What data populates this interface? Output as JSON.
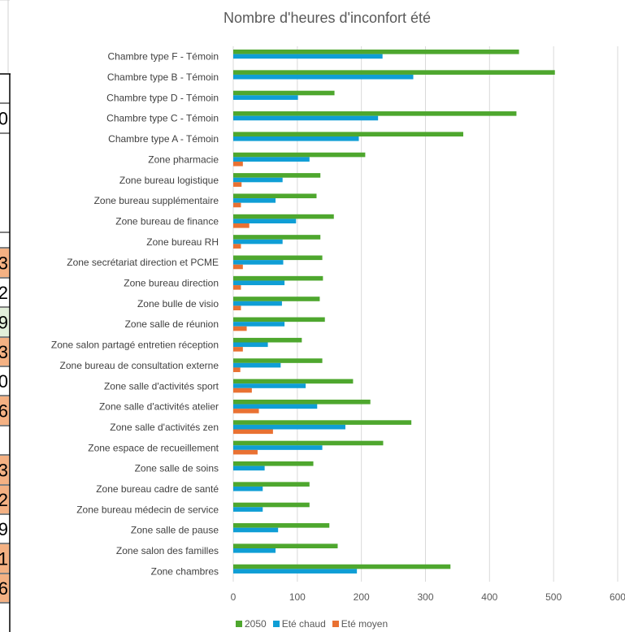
{
  "sheet": {
    "cell_fragments": [
      {
        "text": "0",
        "bg": "#ffffff"
      },
      {
        "text": "3",
        "bg": "#f4b183"
      },
      {
        "text": "2",
        "bg": "#ffffff"
      },
      {
        "text": "9",
        "bg": "#e2efda"
      },
      {
        "text": "3",
        "bg": "#f4b183"
      },
      {
        "text": "0",
        "bg": "#ffffff"
      },
      {
        "text": "6",
        "bg": "#f4b183"
      },
      {
        "text": "3",
        "bg": "#f4b183"
      },
      {
        "text": "2",
        "bg": "#f4b183"
      },
      {
        "text": "9",
        "bg": "#ffffff"
      },
      {
        "text": "1",
        "bg": "#f4b183"
      },
      {
        "text": "6",
        "bg": "#f4b183"
      }
    ]
  },
  "chart_data": {
    "type": "bar",
    "orientation": "horizontal",
    "title": "Nombre d'heures d'inconfort été",
    "categories": [
      "Chambre type F - Témoin",
      "Chambre type B - Témoin",
      "Chambre type D - Témoin",
      "Chambre type C - Témoin",
      "Chambre type A - Témoin",
      "Zone pharmacie",
      "Zone bureau logistique",
      "Zone bureau supplémentaire",
      "Zone bureau de finance",
      "Zone bureau RH",
      "Zone secrétariat direction et PCME",
      "Zone bureau direction",
      "Zone bulle de visio",
      "Zone salle de réunion",
      "Zone salon partagé entretien réception",
      "Zone bureau de consultation externe",
      "Zone salle d'activités sport",
      "Zone salle d'activités atelier",
      "Zone salle d'activités zen",
      "Zone espace de recueillement",
      "Zone salle de soins",
      "Zone bureau cadre de santé",
      "Zone bureau médecin de service",
      "Zone salle de pause",
      "Zone salon des familles",
      "Zone chambres"
    ],
    "series": [
      {
        "name": "2050",
        "color": "#4ea72e",
        "values": [
          446,
          502,
          158,
          442,
          359,
          206,
          136,
          130,
          157,
          136,
          139,
          140,
          135,
          143,
          107,
          139,
          187,
          214,
          278,
          234,
          125,
          119,
          119,
          150,
          163,
          339
        ]
      },
      {
        "name": "Eté chaud",
        "color": "#0f9ed5",
        "values": [
          233,
          281,
          101,
          226,
          196,
          119,
          77,
          66,
          98,
          77,
          78,
          80,
          76,
          80,
          54,
          74,
          113,
          131,
          175,
          139,
          49,
          46,
          46,
          70,
          66,
          193
        ]
      },
      {
        "name": "Eté moyen",
        "color": "#e97132",
        "values": [
          0,
          0,
          0,
          0,
          0,
          15,
          13,
          12,
          25,
          12,
          15,
          12,
          12,
          21,
          15,
          11,
          29,
          40,
          62,
          38,
          0,
          0,
          0,
          0,
          0,
          0
        ]
      }
    ],
    "xlim": [
      0,
      600
    ],
    "xticks": [
      0,
      100,
      200,
      300,
      400,
      500,
      600
    ],
    "grid": true,
    "legend_position": "bottom"
  }
}
